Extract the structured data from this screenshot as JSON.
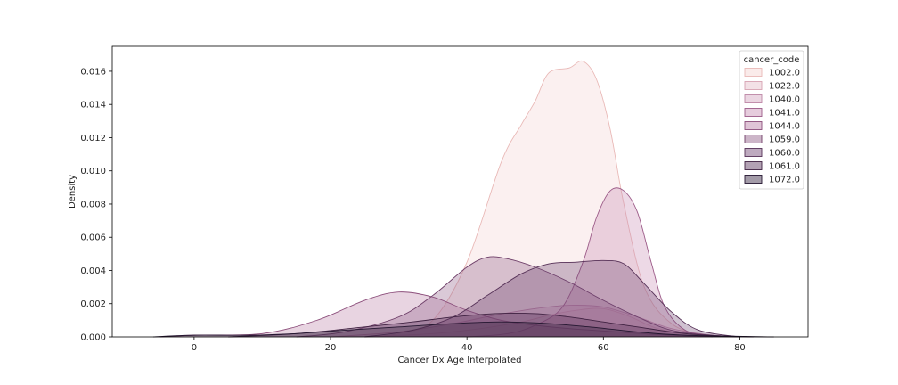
{
  "chart_data": {
    "type": "area",
    "xlabel": "Cancer Dx Age Interpolated",
    "ylabel": "Density",
    "xlim": [
      -12,
      90
    ],
    "ylim": [
      0,
      0.0175
    ],
    "xticks": [
      0,
      20,
      40,
      60,
      80
    ],
    "xtick_labels": [
      "0",
      "20",
      "40",
      "60",
      "80"
    ],
    "yticks": [
      0,
      0.002,
      0.004,
      0.006,
      0.008,
      0.01,
      0.012,
      0.014,
      0.016
    ],
    "ytick_labels": [
      "0.000",
      "0.002",
      "0.004",
      "0.006",
      "0.008",
      "0.010",
      "0.012",
      "0.014",
      "0.016"
    ],
    "grid": false,
    "legend": {
      "title": "cancer_code",
      "placement": "top-right"
    },
    "series": [
      {
        "name": "1002.0",
        "fill": "#f3d2d0",
        "stroke": "#e9b9b7",
        "points": [
          [
            25,
            0
          ],
          [
            30,
            0.0002
          ],
          [
            35,
            0.001
          ],
          [
            40,
            0.0045
          ],
          [
            45,
            0.0105
          ],
          [
            48,
            0.0128
          ],
          [
            50,
            0.0142
          ],
          [
            52,
            0.0159
          ],
          [
            55,
            0.0162
          ],
          [
            57,
            0.0166
          ],
          [
            59,
            0.0155
          ],
          [
            61,
            0.0125
          ],
          [
            63,
            0.008
          ],
          [
            66,
            0.003
          ],
          [
            70,
            0.0008
          ],
          [
            75,
            0.0001
          ],
          [
            80,
            0
          ]
        ]
      },
      {
        "name": "1022.0",
        "fill": "#e5bdc8",
        "stroke": "#d7a2b2",
        "points": [
          [
            25,
            0
          ],
          [
            35,
            0.0002
          ],
          [
            42,
            0.0005
          ],
          [
            48,
            0.0009
          ],
          [
            52,
            0.0013
          ],
          [
            56,
            0.0016
          ],
          [
            60,
            0.0017
          ],
          [
            64,
            0.0012
          ],
          [
            68,
            0.0005
          ],
          [
            74,
            0.0001
          ],
          [
            80,
            0
          ]
        ]
      },
      {
        "name": "1040.0",
        "fill": "#d2a5bf",
        "stroke": "#bd86a6",
        "points": [
          [
            20,
            0
          ],
          [
            30,
            0.0003
          ],
          [
            38,
            0.0008
          ],
          [
            44,
            0.0013
          ],
          [
            50,
            0.0017
          ],
          [
            55,
            0.0019
          ],
          [
            60,
            0.0018
          ],
          [
            65,
            0.0012
          ],
          [
            70,
            0.0005
          ],
          [
            76,
            0.0001
          ],
          [
            82,
            0
          ]
        ]
      },
      {
        "name": "1041.0",
        "fill": "#c88db3",
        "stroke": "#9c5b88",
        "points": [
          [
            40,
            0
          ],
          [
            46,
            0.0002
          ],
          [
            50,
            0.0007
          ],
          [
            54,
            0.0018
          ],
          [
            57,
            0.0045
          ],
          [
            59,
            0.0072
          ],
          [
            61,
            0.0088
          ],
          [
            63,
            0.0088
          ],
          [
            65,
            0.0075
          ],
          [
            67,
            0.0045
          ],
          [
            69,
            0.0018
          ],
          [
            72,
            0.0004
          ],
          [
            76,
            0
          ]
        ]
      },
      {
        "name": "1044.0",
        "fill": "#b97ca5",
        "stroke": "#8b4d7a",
        "points": [
          [
            -5,
            0
          ],
          [
            0,
            0.0001
          ],
          [
            10,
            0.0002
          ],
          [
            18,
            0.001
          ],
          [
            25,
            0.0022
          ],
          [
            30,
            0.0027
          ],
          [
            35,
            0.0024
          ],
          [
            40,
            0.0016
          ],
          [
            45,
            0.001
          ],
          [
            50,
            0.0007
          ],
          [
            55,
            0.0005
          ],
          [
            62,
            0.0003
          ],
          [
            70,
            0.0001
          ],
          [
            80,
            0
          ]
        ]
      },
      {
        "name": "1059.0",
        "fill": "#8f5a86",
        "stroke": "#6e3e68",
        "points": [
          [
            15,
            0
          ],
          [
            22,
            0.0003
          ],
          [
            30,
            0.0012
          ],
          [
            35,
            0.0025
          ],
          [
            40,
            0.0042
          ],
          [
            43,
            0.0048
          ],
          [
            46,
            0.0047
          ],
          [
            50,
            0.0042
          ],
          [
            55,
            0.0033
          ],
          [
            60,
            0.0022
          ],
          [
            65,
            0.0012
          ],
          [
            70,
            0.0004
          ],
          [
            76,
            0.0001
          ],
          [
            82,
            0
          ]
        ]
      },
      {
        "name": "1060.0",
        "fill": "#6e4270",
        "stroke": "#563157",
        "points": [
          [
            25,
            0
          ],
          [
            32,
            0.0004
          ],
          [
            38,
            0.0012
          ],
          [
            43,
            0.0025
          ],
          [
            48,
            0.0038
          ],
          [
            52,
            0.0044
          ],
          [
            56,
            0.0045
          ],
          [
            60,
            0.0046
          ],
          [
            63,
            0.0044
          ],
          [
            66,
            0.0032
          ],
          [
            70,
            0.0015
          ],
          [
            74,
            0.0004
          ],
          [
            80,
            0
          ]
        ]
      },
      {
        "name": "1061.0",
        "fill": "#573058",
        "stroke": "#402242",
        "points": [
          [
            5,
            0
          ],
          [
            15,
            0.0002
          ],
          [
            25,
            0.0006
          ],
          [
            32,
            0.0009
          ],
          [
            38,
            0.0012
          ],
          [
            44,
            0.0014
          ],
          [
            50,
            0.0014
          ],
          [
            55,
            0.0012
          ],
          [
            60,
            0.0009
          ],
          [
            65,
            0.0006
          ],
          [
            72,
            0.0002
          ],
          [
            80,
            0
          ]
        ]
      },
      {
        "name": "1072.0",
        "fill": "#34223e",
        "stroke": "#241630",
        "points": [
          [
            -6,
            0
          ],
          [
            0,
            0.0001
          ],
          [
            8,
            0.0001
          ],
          [
            15,
            0.0002
          ],
          [
            22,
            0.0004
          ],
          [
            30,
            0.0006
          ],
          [
            38,
            0.0008
          ],
          [
            45,
            0.0009
          ],
          [
            52,
            0.0008
          ],
          [
            58,
            0.0006
          ],
          [
            65,
            0.0003
          ],
          [
            72,
            0.0001
          ],
          [
            85,
            0
          ]
        ]
      }
    ]
  }
}
